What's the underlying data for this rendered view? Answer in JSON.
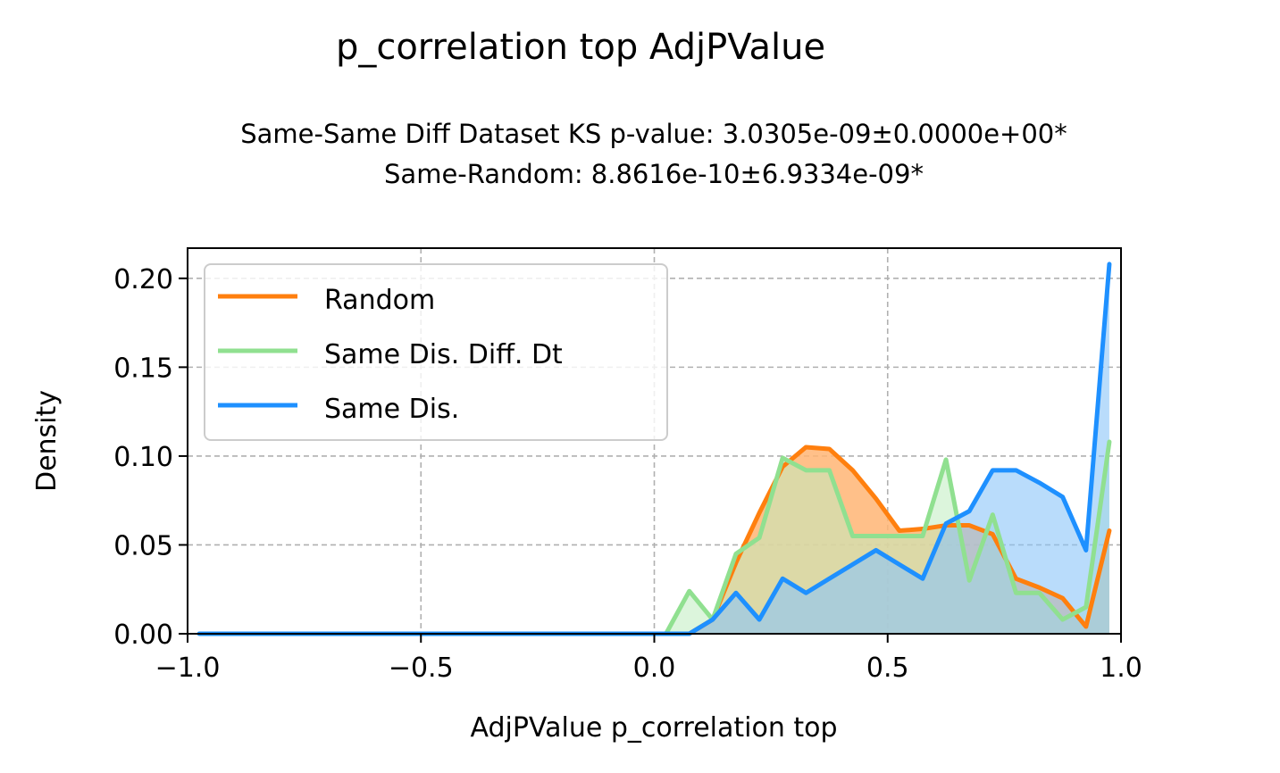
{
  "chart_data": {
    "type": "area",
    "title": "p_correlation top AdjPValue",
    "subtitle_lines": [
      "Same-Same Diff Dataset  KS p-value: 3.0305e-09±0.0000e+00*",
      "Same-Random: 8.8616e-10±6.9334e-09*"
    ],
    "xlabel": "AdjPValue p_correlation top",
    "ylabel": "Density",
    "xlim": [
      -1.0,
      1.0
    ],
    "ylim": [
      0,
      0.217
    ],
    "xticks": [
      -1.0,
      -0.5,
      0.0,
      0.5,
      1.0
    ],
    "xtick_labels": [
      "−1.0",
      "−0.5",
      "0.0",
      "0.5",
      "1.0"
    ],
    "yticks": [
      0.0,
      0.05,
      0.1,
      0.15,
      0.2
    ],
    "ytick_labels": [
      "0.00",
      "0.05",
      "0.10",
      "0.15",
      "0.20"
    ],
    "grid": true,
    "legend_position": "upper-left",
    "series": [
      {
        "name": "Random",
        "color": "#ff7f0e",
        "fill": "#ffb574",
        "x": [
          0.025,
          0.075,
          0.125,
          0.175,
          0.225,
          0.275,
          0.325,
          0.375,
          0.425,
          0.475,
          0.525,
          0.575,
          0.625,
          0.675,
          0.725,
          0.775,
          0.825,
          0.875,
          0.925,
          0.975
        ],
        "y": [
          0.0,
          0.0,
          0.008,
          0.04,
          0.068,
          0.094,
          0.105,
          0.104,
          0.092,
          0.076,
          0.058,
          0.059,
          0.061,
          0.061,
          0.056,
          0.031,
          0.026,
          0.02,
          0.004,
          0.058
        ]
      },
      {
        "name": "Same Dis. Diff. Dt",
        "color": "#90e090",
        "fill": "#c0ecc0",
        "x": [
          0.025,
          0.075,
          0.125,
          0.175,
          0.225,
          0.275,
          0.325,
          0.375,
          0.425,
          0.475,
          0.525,
          0.575,
          0.625,
          0.675,
          0.725,
          0.775,
          0.825,
          0.875,
          0.925,
          0.975
        ],
        "y": [
          0.0,
          0.024,
          0.008,
          0.045,
          0.054,
          0.099,
          0.092,
          0.092,
          0.055,
          0.055,
          0.055,
          0.055,
          0.098,
          0.03,
          0.067,
          0.023,
          0.023,
          0.008,
          0.015,
          0.108
        ]
      },
      {
        "name": "Same Dis.",
        "color": "#1e90ff",
        "fill": "#8ac4f8",
        "x": [
          -0.975,
          -0.025,
          0.075,
          0.125,
          0.175,
          0.225,
          0.275,
          0.325,
          0.375,
          0.425,
          0.475,
          0.525,
          0.575,
          0.625,
          0.675,
          0.725,
          0.775,
          0.825,
          0.875,
          0.925,
          0.975
        ],
        "y": [
          0.0,
          0.0,
          0.0,
          0.008,
          0.023,
          0.008,
          0.031,
          0.023,
          0.031,
          0.039,
          0.047,
          0.039,
          0.031,
          0.062,
          0.069,
          0.092,
          0.092,
          0.085,
          0.077,
          0.047,
          0.208
        ]
      }
    ]
  },
  "colors": {
    "grid": "#b0b0b0",
    "axis": "#000000",
    "overlap_fill": "#6fafc2"
  }
}
